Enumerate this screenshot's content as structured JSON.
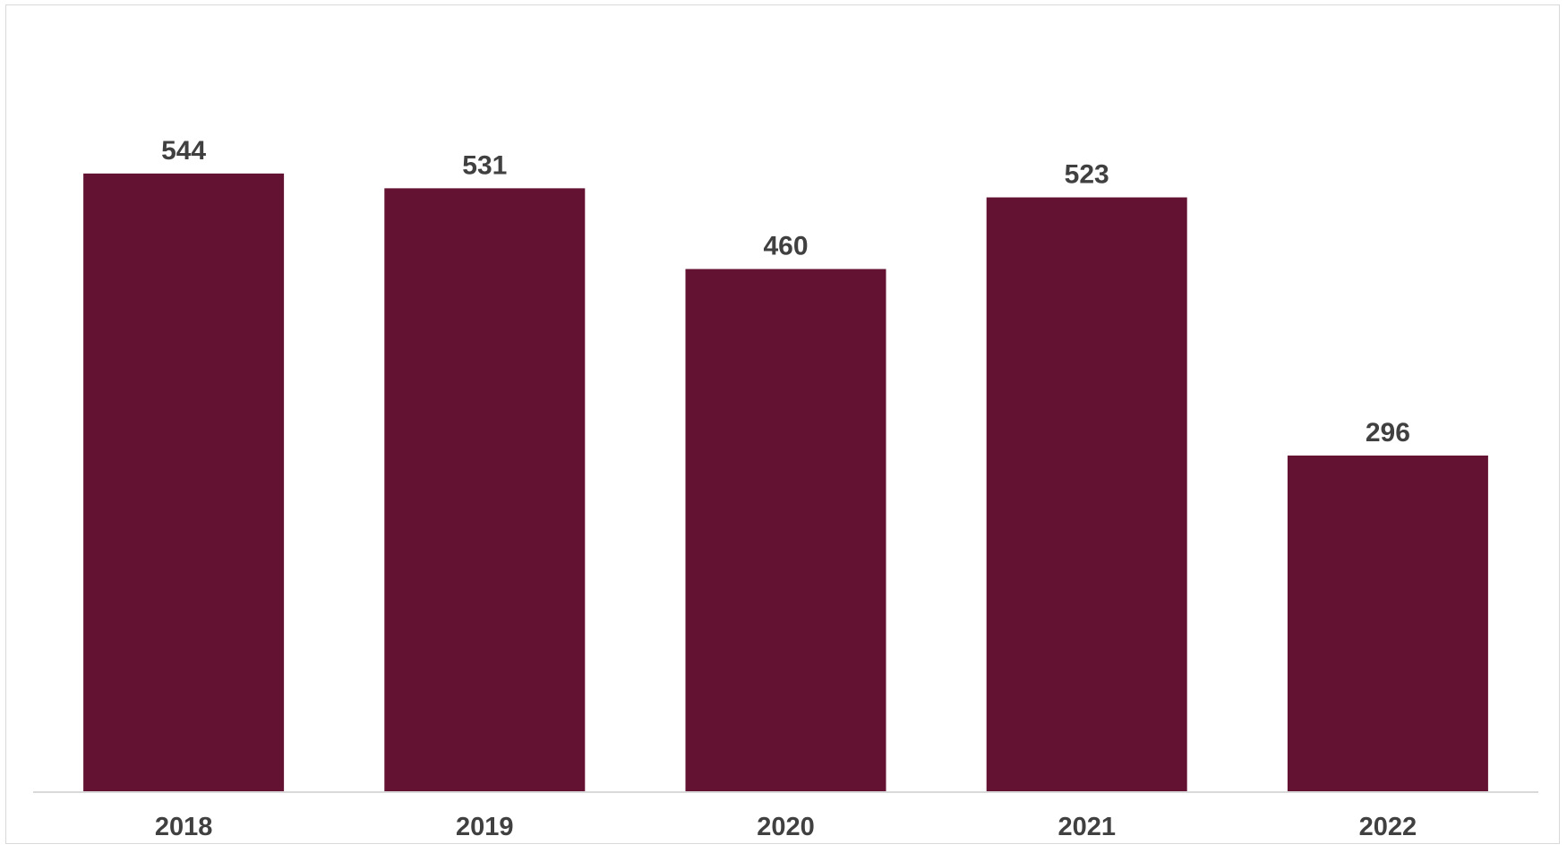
{
  "chart_data": {
    "type": "bar",
    "categories": [
      "2018",
      "2019",
      "2020",
      "2021",
      "2022"
    ],
    "values": [
      544,
      531,
      460,
      523,
      296
    ],
    "data_labels": [
      "544",
      "531",
      "460",
      "523",
      "296"
    ],
    "title": "",
    "xlabel": "",
    "ylabel": "",
    "ylim": [
      0,
      600
    ],
    "grid": false,
    "legend": "none",
    "colors": {
      "bar": "#631231",
      "axis": "#d9d9d9",
      "text": "#404040"
    }
  }
}
